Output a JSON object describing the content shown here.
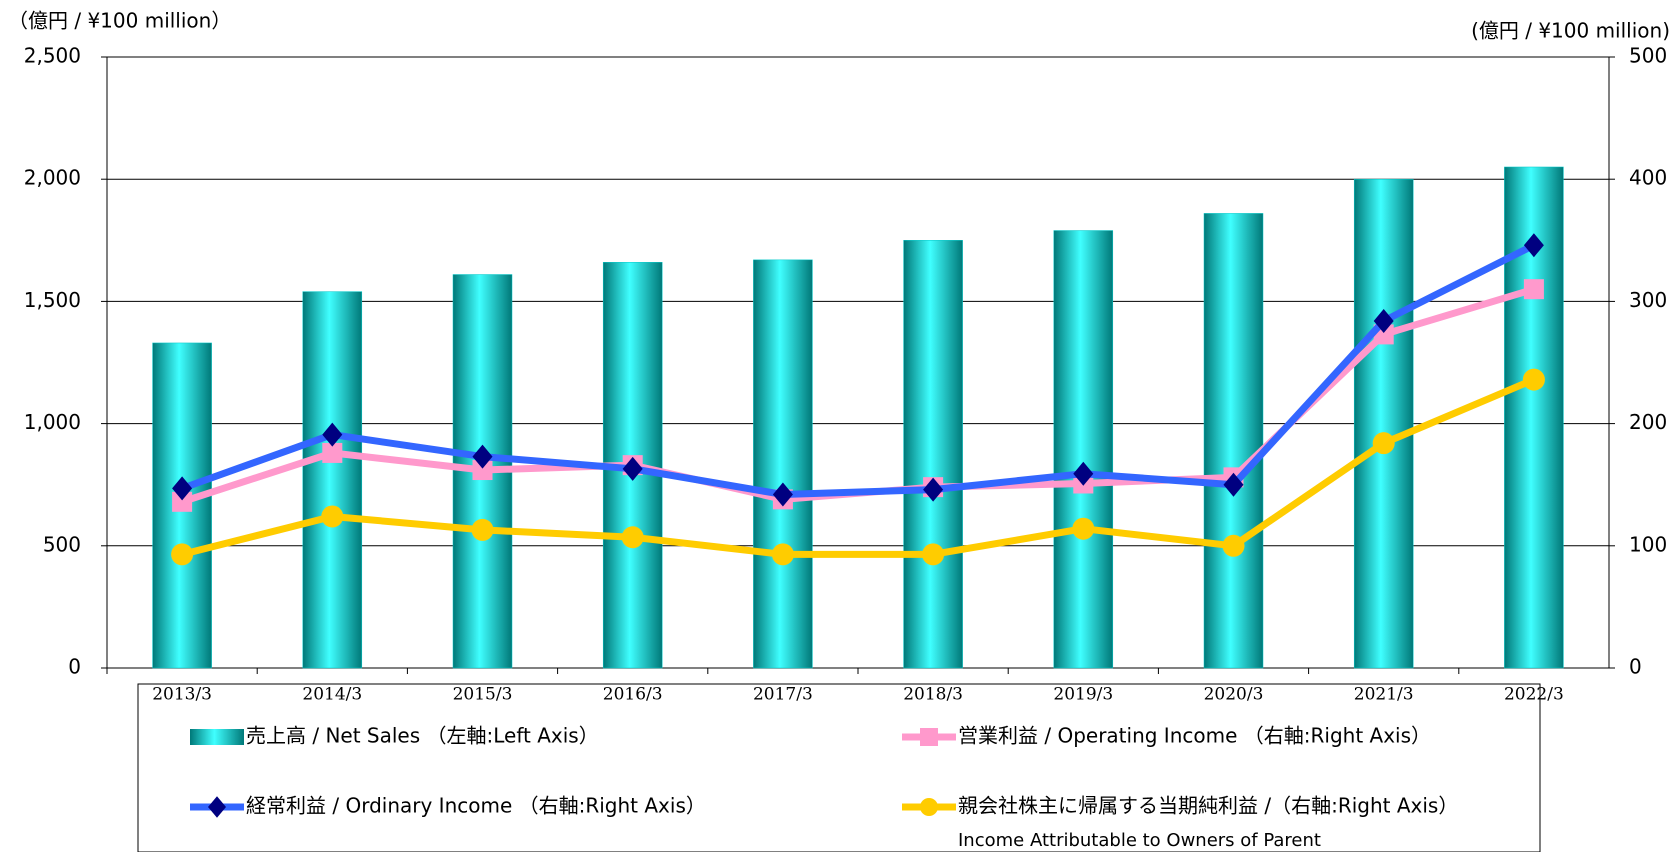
{
  "chart_data": {
    "type": "bar_line",
    "y_label": "（億円 / ¥100 million）",
    "y2_label": "(億円 / ¥100 million)",
    "categories": [
      "2013/3",
      "2014/3",
      "2015/3",
      "2016/3",
      "2017/3",
      "2018/3",
      "2019/3",
      "2020/3",
      "2021/3",
      "2022/3"
    ],
    "ylim": [
      0,
      2500
    ],
    "yticks": [
      0,
      500,
      {
        "value": 1000,
        "label": "1,000"
      },
      {
        "value": 1500,
        "label": "1,500"
      },
      {
        "value": 2000,
        "label": "2,000"
      },
      {
        "value": 2500,
        "label": "2,500"
      }
    ],
    "y2lim": [
      0,
      500
    ],
    "y2ticks": [
      0,
      100,
      200,
      300,
      400,
      500
    ],
    "grid": true,
    "legend": "bottom",
    "series": [
      {
        "name": "売上高 / Net Sales （左軸:Left Axis）",
        "type": "bar",
        "color": "#00c8c8",
        "values": [
          1330,
          1540,
          1610,
          1660,
          1670,
          1750,
          1790,
          1860,
          2000,
          2050
        ]
      },
      {
        "name": "営業利益 / Operating Income （右軸:Right Axis）",
        "type": "line",
        "axis": "y2",
        "color": "#ff99cc",
        "marker": "square",
        "marker_color": "#ff99cc",
        "values": [
          136,
          176,
          162,
          166,
          138,
          148,
          151,
          156,
          273,
          310
        ]
      },
      {
        "name": "経常利益 / Ordinary Income （右軸:Right Axis）",
        "type": "line",
        "axis": "y2",
        "color": "#3366ff",
        "marker": "diamond",
        "marker_color": "#000080",
        "values": [
          147,
          191,
          173,
          163,
          142,
          146,
          159,
          150,
          284,
          346
        ]
      },
      {
        "name": "親会社株主に帰属する当期純利益 /（右軸:Right Axis）",
        "name_en": "Income Attributable to Owners of Parent",
        "type": "line",
        "axis": "y2",
        "color": "#ffcc00",
        "marker": "circle",
        "marker_color": "#ffcc00",
        "values": [
          93,
          124,
          113,
          107,
          93,
          93,
          114,
          100,
          184,
          236
        ]
      }
    ]
  }
}
